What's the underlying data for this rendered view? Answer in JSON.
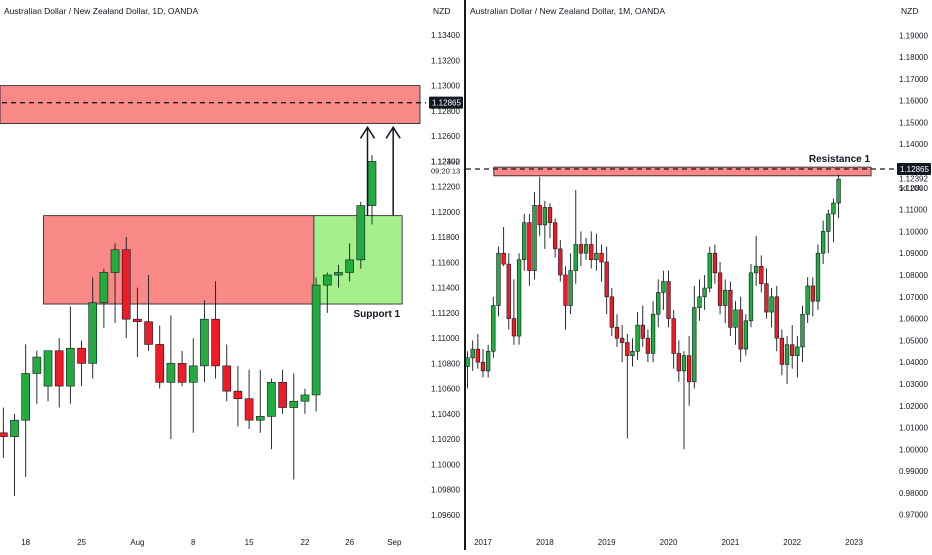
{
  "colors": {
    "up": "#22ab3e",
    "down": "#ee1c25",
    "wick": "#131722",
    "resistance_zone": "#f88986",
    "support_zone": "#f88986",
    "target_zone": "#a4f08b",
    "axis_text": "#131722",
    "price_tag_bg": "#131722",
    "price_tag_fg": "#ffffff"
  },
  "panes": [
    {
      "title": "Australian Dollar / New Zealand Dollar, 1D, OANDA",
      "currency": "NZD",
      "current_price": "1.12392",
      "countdown": "09:20:13",
      "level_price": "1.12865",
      "zone_label": "Support 1"
    },
    {
      "title": "Australian Dollar / New Zealand Dollar, 1M, OANDA",
      "currency": "NZD",
      "current_price": "1.12392",
      "countdown": "5d 10h",
      "level_price": "1.12865",
      "zone_label": "Resistance 1"
    }
  ],
  "chart_data": [
    {
      "type": "candlestick",
      "title": "Australian Dollar / New Zealand Dollar, 1D, OANDA",
      "y_axis_label": "NZD",
      "ylim": [
        1.0948,
        1.1352
      ],
      "ytick_values": [
        1.096,
        1.098,
        1.1,
        1.102,
        1.104,
        1.106,
        1.108,
        1.11,
        1.112,
        1.114,
        1.116,
        1.118,
        1.12,
        1.122,
        1.124,
        1.126,
        1.128,
        1.13,
        1.132,
        1.134
      ],
      "yticks": [
        "1.09600",
        "1.09800",
        "1.10000",
        "1.10200",
        "1.10400",
        "1.10600",
        "1.10800",
        "1.11000",
        "1.11200",
        "1.11400",
        "1.11600",
        "1.11800",
        "1.12000",
        "1.12200",
        "1.12400",
        "1.12600",
        "1.12800",
        "1.13000",
        "1.13200",
        "1.13400"
      ],
      "xticks": [
        {
          "label": "18",
          "at": 2
        },
        {
          "label": "25",
          "at": 7
        },
        {
          "label": "Aug",
          "at": 12
        },
        {
          "label": "8",
          "at": 17
        },
        {
          "label": "15",
          "at": 22
        },
        {
          "label": "22",
          "at": 27
        },
        {
          "label": "26",
          "at": 31
        },
        {
          "label": "Sep",
          "at": 35
        }
      ],
      "x_range": [
        -0.3,
        37.3
      ],
      "candles": [
        {
          "o": 1.1025,
          "h": 1.1045,
          "l": 1.1005,
          "c": 1.1022
        },
        {
          "o": 1.1022,
          "h": 1.104,
          "l": 1.0975,
          "c": 1.1035
        },
        {
          "o": 1.1035,
          "h": 1.1095,
          "l": 1.099,
          "c": 1.1072
        },
        {
          "o": 1.1072,
          "h": 1.109,
          "l": 1.1048,
          "c": 1.1085
        },
        {
          "o": 1.1062,
          "h": 1.109,
          "l": 1.105,
          "c": 1.109
        },
        {
          "o": 1.109,
          "h": 1.11,
          "l": 1.1045,
          "c": 1.1062
        },
        {
          "o": 1.1062,
          "h": 1.1125,
          "l": 1.1048,
          "c": 1.1092
        },
        {
          "o": 1.1092,
          "h": 1.1098,
          "l": 1.1062,
          "c": 1.108
        },
        {
          "o": 1.108,
          "h": 1.1148,
          "l": 1.1068,
          "c": 1.1128
        },
        {
          "o": 1.1128,
          "h": 1.1155,
          "l": 1.1108,
          "c": 1.1152
        },
        {
          "o": 1.1152,
          "h": 1.1175,
          "l": 1.1112,
          "c": 1.117
        },
        {
          "o": 1.117,
          "h": 1.118,
          "l": 1.11,
          "c": 1.1115
        },
        {
          "o": 1.1115,
          "h": 1.114,
          "l": 1.1085,
          "c": 1.1113
        },
        {
          "o": 1.1113,
          "h": 1.115,
          "l": 1.109,
          "c": 1.1095
        },
        {
          "o": 1.1095,
          "h": 1.111,
          "l": 1.106,
          "c": 1.1065
        },
        {
          "o": 1.1065,
          "h": 1.1118,
          "l": 1.102,
          "c": 1.108
        },
        {
          "o": 1.108,
          "h": 1.109,
          "l": 1.1062,
          "c": 1.1065
        },
        {
          "o": 1.1065,
          "h": 1.11,
          "l": 1.1025,
          "c": 1.1078
        },
        {
          "o": 1.1078,
          "h": 1.113,
          "l": 1.1065,
          "c": 1.1115
        },
        {
          "o": 1.1115,
          "h": 1.1145,
          "l": 1.1068,
          "c": 1.1078
        },
        {
          "o": 1.1078,
          "h": 1.1095,
          "l": 1.105,
          "c": 1.1058
        },
        {
          "o": 1.1058,
          "h": 1.1078,
          "l": 1.103,
          "c": 1.1052
        },
        {
          "o": 1.1052,
          "h": 1.1075,
          "l": 1.1028,
          "c": 1.1035
        },
        {
          "o": 1.1035,
          "h": 1.1075,
          "l": 1.1025,
          "c": 1.1038
        },
        {
          "o": 1.1038,
          "h": 1.1068,
          "l": 1.1012,
          "c": 1.1065
        },
        {
          "o": 1.1065,
          "h": 1.1075,
          "l": 1.104,
          "c": 1.1045
        },
        {
          "o": 1.1045,
          "h": 1.1072,
          "l": 1.0988,
          "c": 1.105
        },
        {
          "o": 1.105,
          "h": 1.106,
          "l": 1.104,
          "c": 1.1055
        },
        {
          "o": 1.1055,
          "h": 1.1148,
          "l": 1.1042,
          "c": 1.1142
        },
        {
          "o": 1.1142,
          "h": 1.1152,
          "l": 1.112,
          "c": 1.115
        },
        {
          "o": 1.115,
          "h": 1.1158,
          "l": 1.114,
          "c": 1.1152
        },
        {
          "o": 1.1152,
          "h": 1.1175,
          "l": 1.1145,
          "c": 1.1162
        },
        {
          "o": 1.1162,
          "h": 1.1208,
          "l": 1.1155,
          "c": 1.1205
        },
        {
          "o": 1.1205,
          "h": 1.1245,
          "l": 1.119,
          "c": 1.124
        }
      ],
      "zones": [
        {
          "name": "resistance",
          "y0": 1.127,
          "y1": 1.13,
          "x0": -0.3,
          "x1": 37.3,
          "color": "#f88986"
        },
        {
          "name": "support",
          "y0": 1.1127,
          "y1": 1.1197,
          "x0": 3.6,
          "x1": 27.8,
          "color": "#f88986"
        },
        {
          "name": "target",
          "y0": 1.1127,
          "y1": 1.1197,
          "x0": 27.8,
          "x1": 35.7,
          "color": "#a4f08b"
        }
      ],
      "level": {
        "price": 1.12865,
        "style": "dashed"
      },
      "arrows": [
        {
          "x": 32.6,
          "y_from": 1.1197,
          "y_to": 1.1267
        },
        {
          "x": 34.9,
          "y_from": 1.1197,
          "y_to": 1.1267
        }
      ]
    },
    {
      "type": "candlestick",
      "title": "Australian Dollar / New Zealand Dollar, 1M, OANDA",
      "y_axis_label": "NZD",
      "ylim": [
        0.963,
        1.197
      ],
      "ytick_values": [
        0.97,
        0.98,
        0.99,
        1.0,
        1.01,
        1.02,
        1.03,
        1.04,
        1.05,
        1.06,
        1.07,
        1.08,
        1.09,
        1.1,
        1.11,
        1.12,
        1.13,
        1.14,
        1.15,
        1.16,
        1.17,
        1.18,
        1.19
      ],
      "yticks": [
        "0.97000",
        "0.98000",
        "0.99000",
        "1.00000",
        "1.01000",
        "1.02000",
        "1.03000",
        "1.04000",
        "1.05000",
        "1.06000",
        "1.07000",
        "1.08000",
        "1.09000",
        "1.10000",
        "1.11000",
        "1.12000",
        "1.13000",
        "1.14000",
        "1.15000",
        "1.16000",
        "1.17000",
        "1.18000",
        "1.19000"
      ],
      "xticks": [
        {
          "label": "2017",
          "at": 3
        },
        {
          "label": "2018",
          "at": 15
        },
        {
          "label": "2019",
          "at": 27
        },
        {
          "label": "2020",
          "at": 39
        },
        {
          "label": "2021",
          "at": 51
        },
        {
          "label": "2022",
          "at": 63
        },
        {
          "label": "2023",
          "at": 75
        }
      ],
      "x_range": [
        -0.3,
        81.2
      ],
      "candles": [
        {
          "o": 1.038,
          "h": 1.045,
          "l": 1.028,
          "c": 1.042
        },
        {
          "o": 1.042,
          "h": 1.05,
          "l": 1.036,
          "c": 1.046
        },
        {
          "o": 1.046,
          "h": 1.053,
          "l": 1.037,
          "c": 1.04
        },
        {
          "o": 1.04,
          "h": 1.046,
          "l": 1.033,
          "c": 1.036
        },
        {
          "o": 1.036,
          "h": 1.048,
          "l": 1.033,
          "c": 1.045
        },
        {
          "o": 1.045,
          "h": 1.07,
          "l": 1.042,
          "c": 1.066
        },
        {
          "o": 1.066,
          "h": 1.093,
          "l": 1.061,
          "c": 1.09
        },
        {
          "o": 1.09,
          "h": 1.102,
          "l": 1.084,
          "c": 1.085
        },
        {
          "o": 1.085,
          "h": 1.09,
          "l": 1.055,
          "c": 1.06
        },
        {
          "o": 1.06,
          "h": 1.078,
          "l": 1.048,
          "c": 1.052
        },
        {
          "o": 1.052,
          "h": 1.09,
          "l": 1.048,
          "c": 1.087
        },
        {
          "o": 1.087,
          "h": 1.108,
          "l": 1.082,
          "c": 1.104
        },
        {
          "o": 1.104,
          "h": 1.108,
          "l": 1.075,
          "c": 1.082
        },
        {
          "o": 1.082,
          "h": 1.118,
          "l": 1.078,
          "c": 1.112
        },
        {
          "o": 1.112,
          "h": 1.125,
          "l": 1.098,
          "c": 1.103
        },
        {
          "o": 1.103,
          "h": 1.114,
          "l": 1.092,
          "c": 1.111
        },
        {
          "o": 1.111,
          "h": 1.113,
          "l": 1.097,
          "c": 1.104
        },
        {
          "o": 1.104,
          "h": 1.106,
          "l": 1.088,
          "c": 1.092
        },
        {
          "o": 1.092,
          "h": 1.096,
          "l": 1.077,
          "c": 1.08
        },
        {
          "o": 1.08,
          "h": 1.084,
          "l": 1.055,
          "c": 1.066
        },
        {
          "o": 1.066,
          "h": 1.09,
          "l": 1.062,
          "c": 1.082
        },
        {
          "o": 1.082,
          "h": 1.119,
          "l": 1.076,
          "c": 1.094
        },
        {
          "o": 1.094,
          "h": 1.1,
          "l": 1.084,
          "c": 1.09
        },
        {
          "o": 1.09,
          "h": 1.097,
          "l": 1.087,
          "c": 1.094
        },
        {
          "o": 1.094,
          "h": 1.1,
          "l": 1.083,
          "c": 1.087
        },
        {
          "o": 1.087,
          "h": 1.099,
          "l": 1.082,
          "c": 1.09
        },
        {
          "o": 1.09,
          "h": 1.094,
          "l": 1.077,
          "c": 1.086
        },
        {
          "o": 1.086,
          "h": 1.093,
          "l": 1.062,
          "c": 1.07
        },
        {
          "o": 1.07,
          "h": 1.074,
          "l": 1.052,
          "c": 1.056
        },
        {
          "o": 1.056,
          "h": 1.062,
          "l": 1.047,
          "c": 1.051
        },
        {
          "o": 1.051,
          "h": 1.057,
          "l": 1.04,
          "c": 1.049
        },
        {
          "o": 1.049,
          "h": 1.053,
          "l": 1.005,
          "c": 1.043
        },
        {
          "o": 1.043,
          "h": 1.051,
          "l": 1.038,
          "c": 1.045
        },
        {
          "o": 1.045,
          "h": 1.063,
          "l": 1.041,
          "c": 1.057
        },
        {
          "o": 1.057,
          "h": 1.066,
          "l": 1.047,
          "c": 1.051
        },
        {
          "o": 1.051,
          "h": 1.055,
          "l": 1.04,
          "c": 1.044
        },
        {
          "o": 1.044,
          "h": 1.068,
          "l": 1.04,
          "c": 1.062
        },
        {
          "o": 1.062,
          "h": 1.078,
          "l": 1.056,
          "c": 1.072
        },
        {
          "o": 1.072,
          "h": 1.082,
          "l": 1.064,
          "c": 1.077
        },
        {
          "o": 1.077,
          "h": 1.082,
          "l": 1.056,
          "c": 1.06
        },
        {
          "o": 1.06,
          "h": 1.064,
          "l": 1.037,
          "c": 1.044
        },
        {
          "o": 1.044,
          "h": 1.05,
          "l": 1.031,
          "c": 1.036
        },
        {
          "o": 1.036,
          "h": 1.045,
          "l": 1.0,
          "c": 1.043
        },
        {
          "o": 1.043,
          "h": 1.052,
          "l": 1.02,
          "c": 1.031
        },
        {
          "o": 1.031,
          "h": 1.075,
          "l": 1.028,
          "c": 1.065
        },
        {
          "o": 1.065,
          "h": 1.078,
          "l": 1.059,
          "c": 1.07
        },
        {
          "o": 1.07,
          "h": 1.08,
          "l": 1.064,
          "c": 1.074
        },
        {
          "o": 1.074,
          "h": 1.093,
          "l": 1.072,
          "c": 1.09
        },
        {
          "o": 1.09,
          "h": 1.094,
          "l": 1.076,
          "c": 1.081
        },
        {
          "o": 1.081,
          "h": 1.086,
          "l": 1.062,
          "c": 1.066
        },
        {
          "o": 1.066,
          "h": 1.078,
          "l": 1.058,
          "c": 1.073
        },
        {
          "o": 1.073,
          "h": 1.077,
          "l": 1.052,
          "c": 1.056
        },
        {
          "o": 1.056,
          "h": 1.068,
          "l": 1.048,
          "c": 1.064
        },
        {
          "o": 1.064,
          "h": 1.07,
          "l": 1.04,
          "c": 1.046
        },
        {
          "o": 1.046,
          "h": 1.062,
          "l": 1.043,
          "c": 1.059
        },
        {
          "o": 1.059,
          "h": 1.085,
          "l": 1.056,
          "c": 1.081
        },
        {
          "o": 1.081,
          "h": 1.098,
          "l": 1.075,
          "c": 1.084
        },
        {
          "o": 1.084,
          "h": 1.089,
          "l": 1.072,
          "c": 1.076
        },
        {
          "o": 1.076,
          "h": 1.083,
          "l": 1.06,
          "c": 1.063
        },
        {
          "o": 1.063,
          "h": 1.074,
          "l": 1.056,
          "c": 1.07
        },
        {
          "o": 1.07,
          "h": 1.075,
          "l": 1.045,
          "c": 1.051
        },
        {
          "o": 1.051,
          "h": 1.055,
          "l": 1.034,
          "c": 1.039
        },
        {
          "o": 1.039,
          "h": 1.052,
          "l": 1.03,
          "c": 1.048
        },
        {
          "o": 1.048,
          "h": 1.057,
          "l": 1.037,
          "c": 1.043
        },
        {
          "o": 1.043,
          "h": 1.052,
          "l": 1.033,
          "c": 1.047
        },
        {
          "o": 1.047,
          "h": 1.066,
          "l": 1.04,
          "c": 1.062
        },
        {
          "o": 1.062,
          "h": 1.079,
          "l": 1.058,
          "c": 1.075
        },
        {
          "o": 1.075,
          "h": 1.079,
          "l": 1.061,
          "c": 1.068
        },
        {
          "o": 1.068,
          "h": 1.094,
          "l": 1.064,
          "c": 1.09
        },
        {
          "o": 1.09,
          "h": 1.105,
          "l": 1.085,
          "c": 1.1
        },
        {
          "o": 1.1,
          "h": 1.11,
          "l": 1.09,
          "c": 1.108
        },
        {
          "o": 1.108,
          "h": 1.115,
          "l": 1.095,
          "c": 1.113
        },
        {
          "o": 1.113,
          "h": 1.126,
          "l": 1.106,
          "c": 1.124
        }
      ],
      "zones": [
        {
          "name": "resistance",
          "y0": 1.1255,
          "y1": 1.1295,
          "x0": 5.1,
          "x1": 78.3,
          "color": "#f88986"
        }
      ],
      "level": {
        "price": 1.12865,
        "style": "dashed"
      }
    }
  ]
}
